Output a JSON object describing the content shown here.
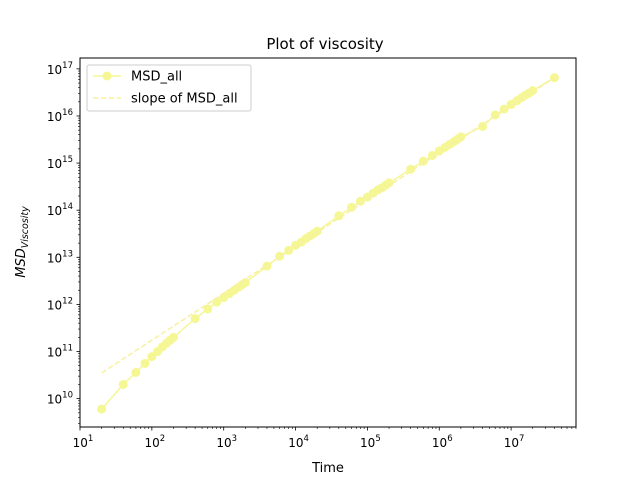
{
  "chart_data": {
    "type": "line",
    "title": "Plot of viscosity",
    "xlabel": "Time",
    "ylabel": "MSD",
    "ylabel_subscript": "Viscosity",
    "xscale": "log",
    "yscale": "log",
    "xlim": [
      10,
      80000000
    ],
    "ylim": [
      2500000000,
      170000000000000000
    ],
    "x_tick_exponents": [
      1,
      2,
      3,
      4,
      5,
      6,
      7
    ],
    "y_tick_exponents": [
      10,
      11,
      12,
      13,
      14,
      15,
      16,
      17
    ],
    "tick_base": "10",
    "grid": false,
    "legend_position": "upper-left",
    "series": [
      {
        "name": "MSD_all",
        "style": "solid-line-circle-markers",
        "color": "#f5f794",
        "points": [
          [
            20,
            6000000000.0
          ],
          [
            40,
            20000000000.0
          ],
          [
            60,
            36000000000.0
          ],
          [
            80,
            56000000000.0
          ],
          [
            100,
            78000000000.0
          ],
          [
            120,
            100000000000.0
          ],
          [
            140,
            125000000000.0
          ],
          [
            160,
            150000000000.0
          ],
          [
            180,
            175000000000.0
          ],
          [
            200,
            200000000000.0
          ],
          [
            400,
            500000000000.0
          ],
          [
            600,
            800000000000.0
          ],
          [
            800,
            1120000000000.0
          ],
          [
            1000,
            1400000000000.0
          ],
          [
            1200,
            1700000000000.0
          ],
          [
            1400,
            2000000000000.0
          ],
          [
            1600,
            2300000000000.0
          ],
          [
            1800,
            2600000000000.0
          ],
          [
            2000,
            2900000000000.0
          ],
          [
            4000,
            6500000000000.0
          ],
          [
            6000,
            10500000000000.0
          ],
          [
            8000,
            14000000000000.0
          ],
          [
            10000,
            18000000000000.0
          ],
          [
            12000,
            21000000000000.0
          ],
          [
            14000,
            25000000000000.0
          ],
          [
            16000,
            28500000000000.0
          ],
          [
            18000,
            32000000000000.0
          ],
          [
            20000,
            36000000000000.0
          ],
          [
            40000,
            76000000000000.0
          ],
          [
            60000,
            115000000000000.0
          ],
          [
            80000,
            155000000000000.0
          ],
          [
            100000,
            190000000000000.0
          ],
          [
            120000,
            230000000000000.0
          ],
          [
            140000,
            270000000000000.0
          ],
          [
            160000,
            300000000000000.0
          ],
          [
            180000,
            340000000000000.0
          ],
          [
            200000,
            380000000000000.0
          ],
          [
            400000,
            740000000000000.0
          ],
          [
            600000,
            1100000000000000.0
          ],
          [
            800000,
            1450000000000000.0
          ],
          [
            1000000,
            1800000000000000.0
          ],
          [
            1200000,
            2150000000000000.0
          ],
          [
            1400000,
            2500000000000000.0
          ],
          [
            1600000,
            2850000000000000.0
          ],
          [
            1800000,
            3200000000000000.0
          ],
          [
            2000000,
            3600000000000000.0
          ],
          [
            4000000,
            6000000000000000.0
          ],
          [
            6000000,
            1.05e+16
          ],
          [
            8000000,
            1.4e+16
          ],
          [
            10000000,
            1.75e+16
          ],
          [
            12000000,
            2.1e+16
          ],
          [
            14000000,
            2.45e+16
          ],
          [
            16000000,
            2.8e+16
          ],
          [
            18000000,
            3.1e+16
          ],
          [
            20000000,
            3.45e+16
          ],
          [
            40000000,
            6.5e+16
          ]
        ]
      },
      {
        "name": "slope of MSD_all",
        "style": "dashed-line",
        "color": "#f8f0a2",
        "points": [
          [
            20,
            35000000000.0
          ],
          [
            40000000,
            6.5e+16
          ]
        ]
      }
    ]
  }
}
